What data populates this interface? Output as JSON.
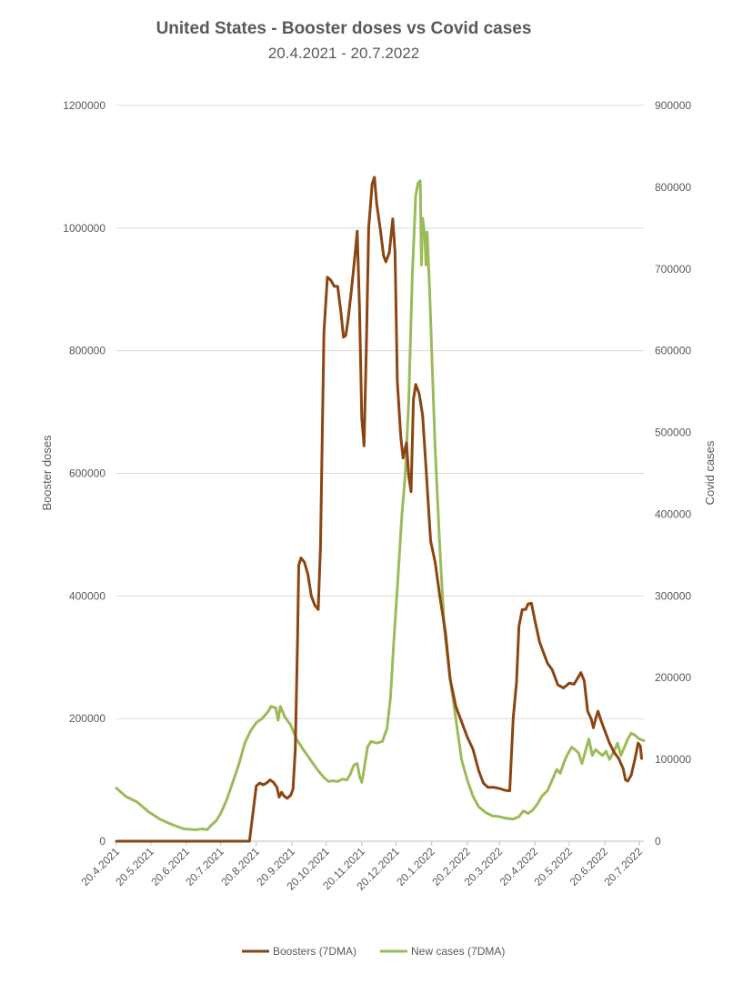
{
  "chart_data": {
    "type": "line",
    "title": "United States - Booster doses vs Covid cases",
    "subtitle": "20.4.2021 - 20.7.2022",
    "ylabel": "Booster doses",
    "y2label": "Covid cases",
    "ylim": [
      0,
      1200000
    ],
    "y2lim": [
      0,
      900000
    ],
    "yticks": [
      "0",
      "200000",
      "400000",
      "600000",
      "800000",
      "1000000",
      "1200000"
    ],
    "y2ticks": [
      "0",
      "100000",
      "200000",
      "300000",
      "400000",
      "500000",
      "600000",
      "700000",
      "800000",
      "900000"
    ],
    "xlim": [
      "2021-04-20",
      "2022-07-24"
    ],
    "xticks": [
      {
        "date": "2021-04-20",
        "label": "20.4.2021"
      },
      {
        "date": "2021-05-20",
        "label": "20.5.2021"
      },
      {
        "date": "2021-06-20",
        "label": "20.6.2021"
      },
      {
        "date": "2021-07-20",
        "label": "20.7.2021"
      },
      {
        "date": "2021-08-20",
        "label": "20.8.2021"
      },
      {
        "date": "2021-09-20",
        "label": "20.9.2021"
      },
      {
        "date": "2021-10-20",
        "label": "20.10.2021"
      },
      {
        "date": "2021-11-20",
        "label": "20.11.2021"
      },
      {
        "date": "2021-12-20",
        "label": "20.12.2021"
      },
      {
        "date": "2022-01-20",
        "label": "20.1.2022"
      },
      {
        "date": "2022-02-20",
        "label": "20.2.2022"
      },
      {
        "date": "2022-03-20",
        "label": "20.3.2022"
      },
      {
        "date": "2022-04-20",
        "label": "20.4.2022"
      },
      {
        "date": "2022-05-20",
        "label": "20.5.2022"
      },
      {
        "date": "2022-06-20",
        "label": "20.6.2022"
      },
      {
        "date": "2022-07-20",
        "label": "20.7.2022"
      }
    ],
    "grid": true,
    "legend": "bottom",
    "series": [
      {
        "name": "Boosters (7DMA)",
        "axis": "left",
        "color": "#8B4513",
        "points": [
          [
            "2021-04-20",
            0
          ],
          [
            "2021-08-14",
            0
          ],
          [
            "2021-08-20",
            90000
          ],
          [
            "2021-08-23",
            95000
          ],
          [
            "2021-08-26",
            92000
          ],
          [
            "2021-08-29",
            95000
          ],
          [
            "2021-09-01",
            100000
          ],
          [
            "2021-09-04",
            96000
          ],
          [
            "2021-09-07",
            88000
          ],
          [
            "2021-09-09",
            72000
          ],
          [
            "2021-09-11",
            80000
          ],
          [
            "2021-09-13",
            74000
          ],
          [
            "2021-09-16",
            70000
          ],
          [
            "2021-09-19",
            75000
          ],
          [
            "2021-09-21",
            85000
          ],
          [
            "2021-09-23",
            150000
          ],
          [
            "2021-09-25",
            330000
          ],
          [
            "2021-09-26",
            450000
          ],
          [
            "2021-09-28",
            462000
          ],
          [
            "2021-10-01",
            455000
          ],
          [
            "2021-10-04",
            435000
          ],
          [
            "2021-10-07",
            400000
          ],
          [
            "2021-10-10",
            385000
          ],
          [
            "2021-10-13",
            378000
          ],
          [
            "2021-10-15",
            480000
          ],
          [
            "2021-10-18",
            830000
          ],
          [
            "2021-10-21",
            920000
          ],
          [
            "2021-10-24",
            915000
          ],
          [
            "2021-10-27",
            905000
          ],
          [
            "2021-10-30",
            905000
          ],
          [
            "2021-11-02",
            860000
          ],
          [
            "2021-11-04",
            822000
          ],
          [
            "2021-11-06",
            825000
          ],
          [
            "2021-11-08",
            850000
          ],
          [
            "2021-11-11",
            900000
          ],
          [
            "2021-11-14",
            955000
          ],
          [
            "2021-11-16",
            995000
          ],
          [
            "2021-11-18",
            870000
          ],
          [
            "2021-11-20",
            690000
          ],
          [
            "2021-11-22",
            645000
          ],
          [
            "2021-11-24",
            810000
          ],
          [
            "2021-11-26",
            1000000
          ],
          [
            "2021-11-29",
            1072000
          ],
          [
            "2021-12-01",
            1083000
          ],
          [
            "2021-12-03",
            1040000
          ],
          [
            "2021-12-06",
            1000000
          ],
          [
            "2021-12-09",
            955000
          ],
          [
            "2021-12-11",
            945000
          ],
          [
            "2021-12-14",
            960000
          ],
          [
            "2021-12-17",
            1015000
          ],
          [
            "2021-12-19",
            960000
          ],
          [
            "2021-12-21",
            750000
          ],
          [
            "2021-12-24",
            660000
          ],
          [
            "2021-12-26",
            625000
          ],
          [
            "2021-12-29",
            650000
          ],
          [
            "2021-12-31",
            595000
          ],
          [
            "2022-01-02",
            570000
          ],
          [
            "2022-01-04",
            720000
          ],
          [
            "2022-01-06",
            745000
          ],
          [
            "2022-01-09",
            730000
          ],
          [
            "2022-01-12",
            695000
          ],
          [
            "2022-01-15",
            610000
          ],
          [
            "2022-01-19",
            490000
          ],
          [
            "2022-01-23",
            455000
          ],
          [
            "2022-01-27",
            400000
          ],
          [
            "2022-02-01",
            340000
          ],
          [
            "2022-02-05",
            265000
          ],
          [
            "2022-02-10",
            220000
          ],
          [
            "2022-02-15",
            195000
          ],
          [
            "2022-02-20",
            170000
          ],
          [
            "2022-02-25",
            150000
          ],
          [
            "2022-03-02",
            115000
          ],
          [
            "2022-03-06",
            95000
          ],
          [
            "2022-03-10",
            88000
          ],
          [
            "2022-03-15",
            88000
          ],
          [
            "2022-03-20",
            86000
          ],
          [
            "2022-03-25",
            83000
          ],
          [
            "2022-03-29",
            82000
          ],
          [
            "2022-04-01",
            200000
          ],
          [
            "2022-04-04",
            260000
          ],
          [
            "2022-04-06",
            350000
          ],
          [
            "2022-04-09",
            378000
          ],
          [
            "2022-04-12",
            378000
          ],
          [
            "2022-04-14",
            387000
          ],
          [
            "2022-04-17",
            388000
          ],
          [
            "2022-04-20",
            360000
          ],
          [
            "2022-04-24",
            325000
          ],
          [
            "2022-04-27",
            310000
          ],
          [
            "2022-05-01",
            290000
          ],
          [
            "2022-05-05",
            280000
          ],
          [
            "2022-05-10",
            255000
          ],
          [
            "2022-05-15",
            250000
          ],
          [
            "2022-05-20",
            258000
          ],
          [
            "2022-05-24",
            256000
          ],
          [
            "2022-05-27",
            265000
          ],
          [
            "2022-05-30",
            275000
          ],
          [
            "2022-06-02",
            262000
          ],
          [
            "2022-06-05",
            212000
          ],
          [
            "2022-06-08",
            200000
          ],
          [
            "2022-06-10",
            185000
          ],
          [
            "2022-06-12",
            200000
          ],
          [
            "2022-06-14",
            212000
          ],
          [
            "2022-06-17",
            195000
          ],
          [
            "2022-06-20",
            180000
          ],
          [
            "2022-06-24",
            160000
          ],
          [
            "2022-06-28",
            145000
          ],
          [
            "2022-07-02",
            135000
          ],
          [
            "2022-07-06",
            118000
          ],
          [
            "2022-07-08",
            100000
          ],
          [
            "2022-07-10",
            98000
          ],
          [
            "2022-07-13",
            108000
          ],
          [
            "2022-07-16",
            132000
          ],
          [
            "2022-07-19",
            160000
          ],
          [
            "2022-07-21",
            155000
          ],
          [
            "2022-07-22",
            135000
          ]
        ]
      },
      {
        "name": "New cases (7DMA)",
        "axis": "right",
        "color": "#9BBB59",
        "points": [
          [
            "2021-04-20",
            65000
          ],
          [
            "2021-04-28",
            55000
          ],
          [
            "2021-05-08",
            48000
          ],
          [
            "2021-05-18",
            36000
          ],
          [
            "2021-05-28",
            27000
          ],
          [
            "2021-06-08",
            20000
          ],
          [
            "2021-06-18",
            15000
          ],
          [
            "2021-06-28",
            14000
          ],
          [
            "2021-07-04",
            15000
          ],
          [
            "2021-07-08",
            14000
          ],
          [
            "2021-07-12",
            20000
          ],
          [
            "2021-07-16",
            25000
          ],
          [
            "2021-07-20",
            34000
          ],
          [
            "2021-07-25",
            50000
          ],
          [
            "2021-07-30",
            70000
          ],
          [
            "2021-08-05",
            95000
          ],
          [
            "2021-08-10",
            120000
          ],
          [
            "2021-08-15",
            135000
          ],
          [
            "2021-08-20",
            145000
          ],
          [
            "2021-08-25",
            150000
          ],
          [
            "2021-08-30",
            158000
          ],
          [
            "2021-09-02",
            165000
          ],
          [
            "2021-09-06",
            163000
          ],
          [
            "2021-09-08",
            148000
          ],
          [
            "2021-09-10",
            165000
          ],
          [
            "2021-09-14",
            152000
          ],
          [
            "2021-09-19",
            142000
          ],
          [
            "2021-09-24",
            125000
          ],
          [
            "2021-09-30",
            112000
          ],
          [
            "2021-10-06",
            100000
          ],
          [
            "2021-10-12",
            88000
          ],
          [
            "2021-10-18",
            78000
          ],
          [
            "2021-10-22",
            73000
          ],
          [
            "2021-10-26",
            74000
          ],
          [
            "2021-10-30",
            73000
          ],
          [
            "2021-11-03",
            76000
          ],
          [
            "2021-11-07",
            75000
          ],
          [
            "2021-11-10",
            82000
          ],
          [
            "2021-11-13",
            93000
          ],
          [
            "2021-11-16",
            95000
          ],
          [
            "2021-11-18",
            80000
          ],
          [
            "2021-11-20",
            72000
          ],
          [
            "2021-11-22",
            88000
          ],
          [
            "2021-11-25",
            115000
          ],
          [
            "2021-11-28",
            122000
          ],
          [
            "2021-12-03",
            120000
          ],
          [
            "2021-12-08",
            122000
          ],
          [
            "2021-12-12",
            138000
          ],
          [
            "2021-12-15",
            175000
          ],
          [
            "2021-12-18",
            245000
          ],
          [
            "2021-12-21",
            310000
          ],
          [
            "2021-12-25",
            400000
          ],
          [
            "2021-12-28",
            450000
          ],
          [
            "2021-12-31",
            540000
          ],
          [
            "2022-01-03",
            690000
          ],
          [
            "2022-01-06",
            790000
          ],
          [
            "2022-01-08",
            805000
          ],
          [
            "2022-01-10",
            808000
          ],
          [
            "2022-01-11",
            705000
          ],
          [
            "2022-01-12",
            762000
          ],
          [
            "2022-01-14",
            740000
          ],
          [
            "2022-01-15",
            705000
          ],
          [
            "2022-01-16",
            745000
          ],
          [
            "2022-01-18",
            680000
          ],
          [
            "2022-01-20",
            600000
          ],
          [
            "2022-01-23",
            480000
          ],
          [
            "2022-01-27",
            360000
          ],
          [
            "2022-01-31",
            260000
          ],
          [
            "2022-02-05",
            200000
          ],
          [
            "2022-02-10",
            150000
          ],
          [
            "2022-02-15",
            100000
          ],
          [
            "2022-02-20",
            75000
          ],
          [
            "2022-02-25",
            55000
          ],
          [
            "2022-03-02",
            42000
          ],
          [
            "2022-03-08",
            35000
          ],
          [
            "2022-03-14",
            31000
          ],
          [
            "2022-03-20",
            30000
          ],
          [
            "2022-03-26",
            28000
          ],
          [
            "2022-04-01",
            27000
          ],
          [
            "2022-04-06",
            30000
          ],
          [
            "2022-04-10",
            37000
          ],
          [
            "2022-04-14",
            34000
          ],
          [
            "2022-04-18",
            38000
          ],
          [
            "2022-04-22",
            45000
          ],
          [
            "2022-04-26",
            55000
          ],
          [
            "2022-05-01",
            62000
          ],
          [
            "2022-05-06",
            78000
          ],
          [
            "2022-05-09",
            88000
          ],
          [
            "2022-05-12",
            83000
          ],
          [
            "2022-05-15",
            95000
          ],
          [
            "2022-05-18",
            105000
          ],
          [
            "2022-05-22",
            115000
          ],
          [
            "2022-05-25",
            112000
          ],
          [
            "2022-05-28",
            108000
          ],
          [
            "2022-05-31",
            95000
          ],
          [
            "2022-06-03",
            110000
          ],
          [
            "2022-06-06",
            125000
          ],
          [
            "2022-06-09",
            105000
          ],
          [
            "2022-06-12",
            112000
          ],
          [
            "2022-06-15",
            108000
          ],
          [
            "2022-06-18",
            105000
          ],
          [
            "2022-06-21",
            110000
          ],
          [
            "2022-06-24",
            100000
          ],
          [
            "2022-06-28",
            110000
          ],
          [
            "2022-07-01",
            120000
          ],
          [
            "2022-07-04",
            105000
          ],
          [
            "2022-07-07",
            115000
          ],
          [
            "2022-07-10",
            125000
          ],
          [
            "2022-07-13",
            132000
          ],
          [
            "2022-07-16",
            130000
          ],
          [
            "2022-07-20",
            125000
          ],
          [
            "2022-07-24",
            123000
          ]
        ]
      }
    ]
  }
}
